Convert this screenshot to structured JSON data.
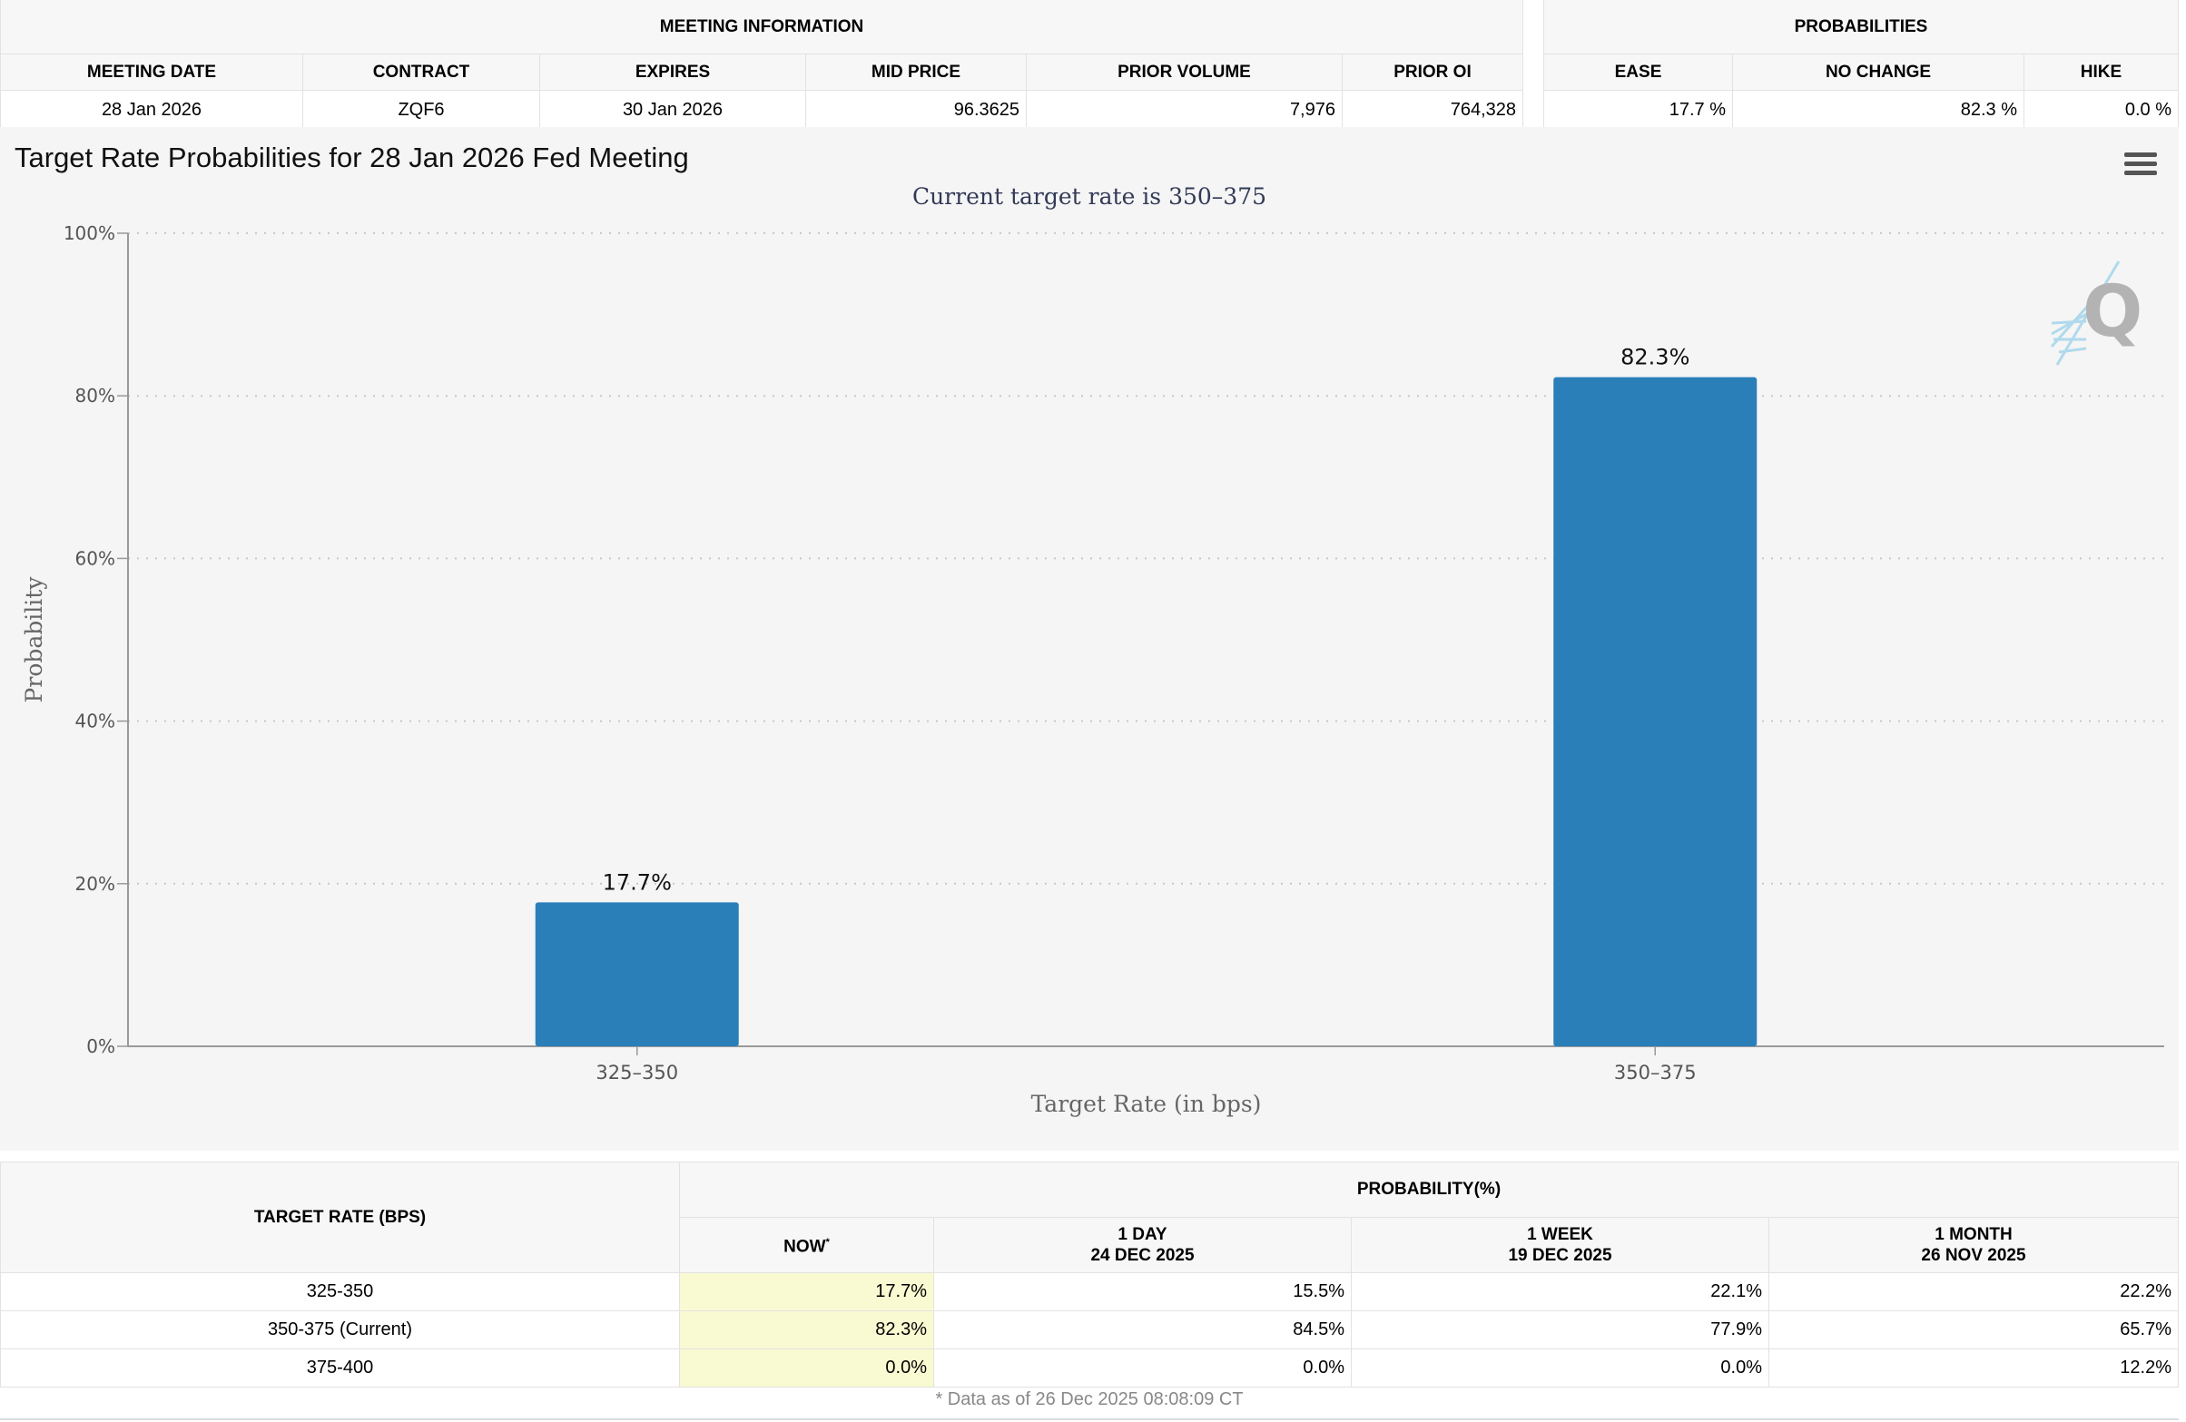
{
  "meeting_info": {
    "caption": "MEETING INFORMATION",
    "headers": [
      "MEETING DATE",
      "CONTRACT",
      "EXPIRES",
      "MID PRICE",
      "PRIOR VOLUME",
      "PRIOR OI"
    ],
    "row": [
      "28 Jan 2026",
      "ZQF6",
      "30 Jan 2026",
      "96.3625",
      "7,976",
      "764,328"
    ]
  },
  "probabilities": {
    "caption": "PROBABILITIES",
    "headers": [
      "EASE",
      "NO CHANGE",
      "HIKE"
    ],
    "row": [
      "17.7 %",
      "82.3 %",
      "0.0 %"
    ]
  },
  "chart": {
    "menu_icon": "hamburger-menu-icon",
    "watermark_icon": "q-logo-icon",
    "bar_color": "#2a7fb8"
  },
  "chart_data": {
    "type": "bar",
    "title": "Target Rate Probabilities for 28 Jan 2026 Fed Meeting",
    "subtitle": "Current target rate is 350–375",
    "categories": [
      "325–350",
      "350–375"
    ],
    "values": [
      17.7,
      82.3
    ],
    "data_labels": [
      "17.7%",
      "82.3%"
    ],
    "xlabel": "Target Rate (in bps)",
    "ylabel": "Probability",
    "ylim": [
      0,
      100
    ],
    "yticks": [
      0,
      20,
      40,
      60,
      80,
      100
    ],
    "ytick_labels": [
      "0%",
      "20%",
      "40%",
      "60%",
      "80%",
      "100%"
    ],
    "grid": true,
    "legend": "none"
  },
  "history": {
    "row_header": "TARGET RATE (BPS)",
    "group_header": "PROBABILITY(%)",
    "columns": [
      {
        "line1": "NOW",
        "line2": ""
      },
      {
        "line1": "1 DAY",
        "line2": "24 DEC 2025"
      },
      {
        "line1": "1 WEEK",
        "line2": "19 DEC 2025"
      },
      {
        "line1": "1 MONTH",
        "line2": "26 NOV 2025"
      }
    ],
    "now_marker": "*",
    "rows": [
      {
        "rate": "325-350",
        "now": "17.7%",
        "day": "15.5%",
        "week": "22.1%",
        "month": "22.2%"
      },
      {
        "rate": "350-375 (Current)",
        "now": "82.3%",
        "day": "84.5%",
        "week": "77.9%",
        "month": "65.7%"
      },
      {
        "rate": "375-400",
        "now": "0.0%",
        "day": "0.0%",
        "week": "0.0%",
        "month": "12.2%"
      }
    ],
    "footnote": "* Data as of 26 Dec 2025 08:08:09 CT"
  }
}
